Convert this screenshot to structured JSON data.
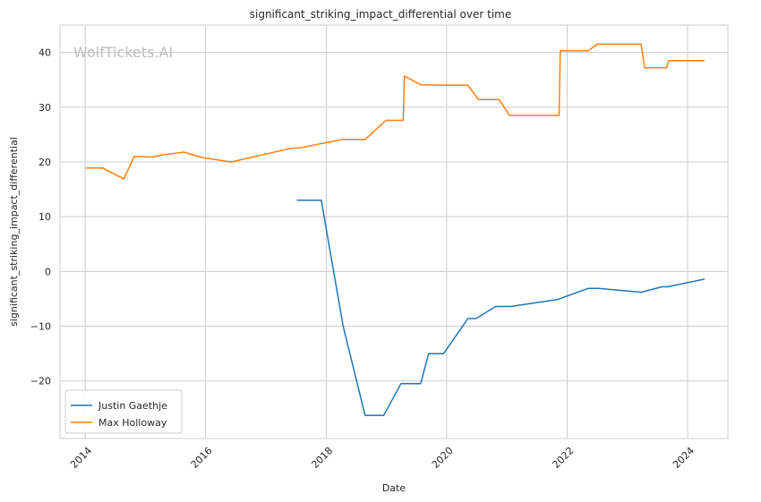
{
  "chart_data": {
    "type": "line",
    "title": "significant_striking_impact_differential over time",
    "xlabel": "Date",
    "ylabel": "significant_striking_impact_differential",
    "watermark": "WolfTickets.AI",
    "x_ticks": [
      "2014",
      "2016",
      "2018",
      "2020",
      "2022",
      "2024"
    ],
    "y_ticks": [
      "−20",
      "−10",
      "0",
      "10",
      "20",
      "30",
      "40"
    ],
    "y_tick_values": [
      -20,
      -10,
      0,
      10,
      20,
      30,
      40
    ],
    "xlim": [
      "2013-08-01",
      "2024-09-01"
    ],
    "ylim": [
      -30.5,
      45
    ],
    "grid": true,
    "legend_position": "lower-left",
    "series": [
      {
        "name": "Justin Gaethje",
        "color": "#1f77b4",
        "points": [
          [
            "2017-07-07",
            13.0
          ],
          [
            "2017-12-02",
            13.0
          ],
          [
            "2018-04-14",
            -10.0
          ],
          [
            "2018-08-25",
            -26.3
          ],
          [
            "2018-12-15",
            -26.3
          ],
          [
            "2019-03-30",
            -20.5
          ],
          [
            "2019-07-27",
            -20.5
          ],
          [
            "2019-09-14",
            -15.0
          ],
          [
            "2019-12-14",
            -15.0
          ],
          [
            "2020-05-09",
            -8.6
          ],
          [
            "2020-06-27",
            -8.6
          ],
          [
            "2020-10-24",
            -6.4
          ],
          [
            "2021-01-23",
            -6.4
          ],
          [
            "2021-11-06",
            -5.1
          ],
          [
            "2022-05-07",
            -3.1
          ],
          [
            "2022-07-09",
            -3.1
          ],
          [
            "2023-03-25",
            -3.8
          ],
          [
            "2023-07-29",
            -2.8
          ],
          [
            "2023-09-01",
            -2.8
          ],
          [
            "2024-04-13",
            -1.4
          ]
        ]
      },
      {
        "name": "Max Holloway",
        "color": "#ff7f0e",
        "points": [
          [
            "2014-01-04",
            18.9
          ],
          [
            "2014-04-16",
            18.9
          ],
          [
            "2014-08-23",
            16.9
          ],
          [
            "2014-10-25",
            21.0
          ],
          [
            "2015-02-14",
            20.9
          ],
          [
            "2015-04-18",
            21.3
          ],
          [
            "2015-08-23",
            21.8
          ],
          [
            "2015-12-12",
            20.8
          ],
          [
            "2016-06-04",
            20.0
          ],
          [
            "2017-06-03",
            22.5
          ],
          [
            "2017-07-29",
            22.6
          ],
          [
            "2018-04-07",
            24.1
          ],
          [
            "2018-08-25",
            24.1
          ],
          [
            "2018-12-29",
            27.6
          ],
          [
            "2019-04-13",
            27.6
          ],
          [
            "2019-04-20",
            35.7
          ],
          [
            "2019-07-27",
            34.1
          ],
          [
            "2019-12-14",
            34.0
          ],
          [
            "2020-05-09",
            34.0
          ],
          [
            "2020-07-12",
            31.4
          ],
          [
            "2020-11-14",
            31.4
          ],
          [
            "2021-01-16",
            28.5
          ],
          [
            "2021-11-13",
            28.5
          ],
          [
            "2021-11-20",
            40.3
          ],
          [
            "2022-05-07",
            40.3
          ],
          [
            "2022-07-02",
            41.5
          ],
          [
            "2023-03-25",
            41.5
          ],
          [
            "2023-04-15",
            37.2
          ],
          [
            "2023-08-26",
            37.2
          ],
          [
            "2023-09-09",
            38.5
          ],
          [
            "2024-04-13",
            38.5
          ]
        ]
      }
    ]
  }
}
